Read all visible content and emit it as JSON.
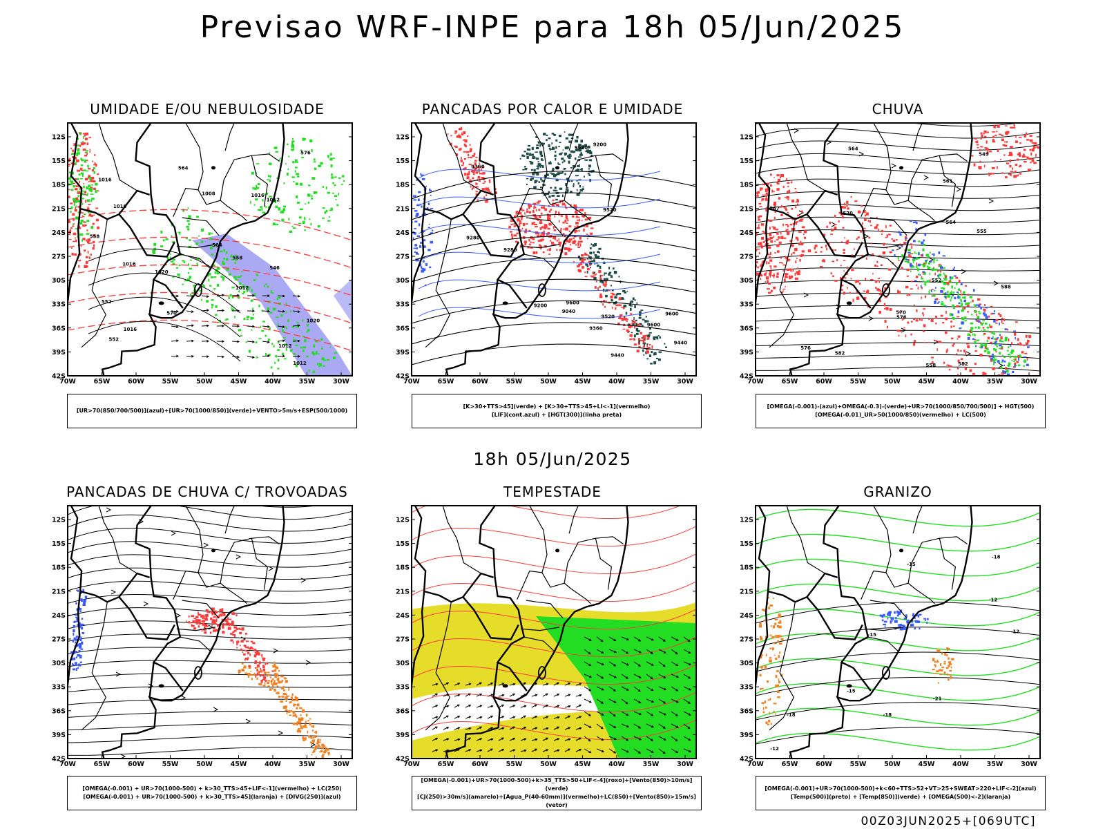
{
  "page": {
    "title": "Previsao WRF-INPE  para 18h 05/Jun/2025",
    "mid_title": "18h 05/Jun/2025",
    "footer": "00Z03JUN2025+[069UTC]"
  },
  "axes": {
    "lat_labels": [
      "12S",
      "15S",
      "18S",
      "21S",
      "24S",
      "27S",
      "30S",
      "33S",
      "36S",
      "39S",
      "42S"
    ],
    "lon_labels": [
      "70W",
      "65W",
      "60W",
      "55W",
      "50W",
      "45W",
      "40W",
      "35W",
      "30W"
    ]
  },
  "panels": [
    {
      "id": "umidade",
      "title": "UMIDADE E/OU NEBULOSIDADE",
      "legend": [
        "[UR>70(850/700/500)](azul)+[UR>70(1000/850)](verde)+VENTO>5m/s+ESP(500/1000)"
      ],
      "contour_labels": [
        "1012",
        "1016",
        "1012",
        "1016",
        "1020",
        "1016",
        "1016",
        "1020",
        "1012",
        "1008",
        "1016",
        "1012",
        "570",
        "564",
        "558",
        "552",
        "546",
        "564",
        "558",
        "552",
        "576"
      ]
    },
    {
      "id": "pancadas-calor",
      "title": "PANCADAS POR CALOR E UMIDADE",
      "legend": [
        "[K>30+TTS>45](verde) + [K>30+TTS>45+LI<-1](vermelho)",
        "[LIF](cont.azul) + [HGT(300)](linha preta)"
      ],
      "contour_labels": [
        "9600",
        "9600",
        "9600",
        "9520",
        "9520",
        "9520",
        "9440",
        "9440",
        "9360",
        "9360",
        "9280",
        "9280",
        "9200",
        "9040",
        "9200"
      ]
    },
    {
      "id": "chuva",
      "title": "CHUVA",
      "legend": [
        "[OMEGA(-0.001)-(azul)+OMEGA(-0.3)-(verde)+UR>70(1000/850/700/500)] + HGT(500)",
        "[OMEGA(-0.01)_UR>50(1000/850)(vermelho) + LC(500)"
      ],
      "contour_labels": [
        "588",
        "582",
        "576",
        "576",
        "570",
        "570",
        "564",
        "561",
        "558",
        "555",
        "552",
        "549",
        "567",
        "564",
        "582"
      ]
    },
    {
      "id": "pancadas-trovoadas",
      "title": "PANCADAS DE CHUVA C/ TROVOADAS",
      "legend": [
        "[OMEGA(-0.001) + UR>70(1000-500) + k>30_TTS>45+LIF<-1](vermelho) + LC(250)",
        "[OMEGA(-0.001) + UR>70(1000-500) + k>30_TTS>45](laranja) + [DIVG(250)](azul)"
      ],
      "contour_labels": []
    },
    {
      "id": "tempestade",
      "title": "TEMPESTADE",
      "legend": [
        "[OMEGA(-0.001)+UR>70(1000-500)+k>35_TTS>50+LIF<-4](roxo)+[Vento(850)>10m/s](verde)",
        "[CJ(250)>30m/s](amarelo)+[Agua_P(40-60mm)](vermelho)+LC(850)+[Vento(850)>15m/s](vetor)"
      ],
      "contour_labels": []
    },
    {
      "id": "granizo",
      "title": "GRANIZO",
      "legend": [
        "[OMEGA(-0.001)+UR>70(1000-500)+k<60+TTS>52+VT>25+SWEAT>220+LIF<-2](azul)",
        "[Temp(500)](preto) + [Temp(850)](verde) + [OMEGA(500)<-2](laranja)"
      ],
      "contour_labels": [
        "-12",
        "-15",
        "-18",
        "-21",
        "-15",
        "-12",
        "-18",
        "-15",
        "-18",
        "-12"
      ]
    }
  ],
  "colors": {
    "blue": "#3b5bff",
    "green": "#22dd22",
    "red": "#ff3a3a",
    "orange": "#f08020",
    "yellow": "#e6dc2a",
    "darkgreen": "#1c4a44",
    "lavender": "#8c8cf0"
  }
}
